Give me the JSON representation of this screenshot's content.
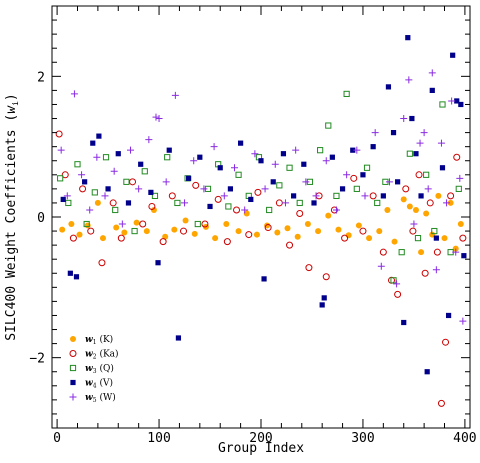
{
  "chart_data": {
    "type": "scatter",
    "xlabel": "Group Index",
    "ylabel": "SILC400 Weight Coefficients (",
    "ylabel_sym": "w",
    "ylabel_sub": "i",
    "ylabel_close": ")",
    "xlim": [
      -5,
      405
    ],
    "ylim": [
      -3.0,
      3.0
    ],
    "x_ticks": [
      "0",
      "100",
      "200",
      "300",
      "400"
    ],
    "y_ticks": [
      "−2",
      "0",
      "2"
    ],
    "legend_position": "bottom-left",
    "series": [
      {
        "key": "w1",
        "name": "w",
        "sub": "1",
        "suffix": " (K)",
        "color": "#ffa500",
        "marker": "filled-circle",
        "points": [
          [
            5,
            -0.18
          ],
          [
            14,
            -0.1
          ],
          [
            22,
            -0.25
          ],
          [
            30,
            -0.12
          ],
          [
            40,
            0.2
          ],
          [
            45,
            -0.3
          ],
          [
            58,
            -0.15
          ],
          [
            66,
            -0.22
          ],
          [
            78,
            -0.08
          ],
          [
            88,
            -0.2
          ],
          [
            95,
            0.1
          ],
          [
            106,
            -0.28
          ],
          [
            115,
            -0.18
          ],
          [
            126,
            -0.05
          ],
          [
            135,
            -0.24
          ],
          [
            146,
            -0.14
          ],
          [
            155,
            -0.3
          ],
          [
            166,
            -0.1
          ],
          [
            178,
            -0.2
          ],
          [
            186,
            0.05
          ],
          [
            196,
            -0.25
          ],
          [
            206,
            -0.12
          ],
          [
            216,
            -0.22
          ],
          [
            226,
            -0.16
          ],
          [
            236,
            -0.28
          ],
          [
            246,
            -0.1
          ],
          [
            256,
            -0.2
          ],
          [
            266,
            0.02
          ],
          [
            276,
            -0.18
          ],
          [
            286,
            -0.26
          ],
          [
            296,
            -0.12
          ],
          [
            306,
            -0.3
          ],
          [
            316,
            -0.2
          ],
          [
            324,
            0.1
          ],
          [
            331,
            -0.35
          ],
          [
            340,
            0.25
          ],
          [
            346,
            0.15
          ],
          [
            352,
            0.1
          ],
          [
            357,
            -0.5
          ],
          [
            362,
            0.05
          ],
          [
            368,
            -0.25
          ],
          [
            374,
            0.3
          ],
          [
            380,
            -0.3
          ],
          [
            386,
            0.2
          ],
          [
            391,
            -0.45
          ],
          [
            396,
            -0.1
          ]
        ]
      },
      {
        "key": "w2",
        "name": "w",
        "sub": "2",
        "suffix": " (Ka)",
        "color": "#cc0000",
        "marker": "open-circle",
        "points": [
          [
            2,
            1.18
          ],
          [
            8,
            0.6
          ],
          [
            16,
            -0.3
          ],
          [
            25,
            0.4
          ],
          [
            33,
            -0.2
          ],
          [
            44,
            -0.65
          ],
          [
            55,
            0.2
          ],
          [
            63,
            -0.3
          ],
          [
            74,
            0.5
          ],
          [
            84,
            -0.1
          ],
          [
            93,
            0.15
          ],
          [
            104,
            -0.35
          ],
          [
            113,
            0.3
          ],
          [
            124,
            -0.2
          ],
          [
            136,
            0.45
          ],
          [
            145,
            -0.1
          ],
          [
            158,
            0.25
          ],
          [
            167,
            -0.35
          ],
          [
            176,
            0.1
          ],
          [
            188,
            -0.25
          ],
          [
            197,
            0.35
          ],
          [
            207,
            -0.15
          ],
          [
            218,
            0.2
          ],
          [
            228,
            -0.4
          ],
          [
            238,
            0.05
          ],
          [
            247,
            -0.72
          ],
          [
            257,
            0.3
          ],
          [
            264,
            -0.85
          ],
          [
            272,
            0.1
          ],
          [
            282,
            -0.3
          ],
          [
            291,
            0.55
          ],
          [
            300,
            -0.2
          ],
          [
            310,
            0.3
          ],
          [
            320,
            -0.5
          ],
          [
            328,
            -0.9
          ],
          [
            334,
            -1.1
          ],
          [
            342,
            0.4
          ],
          [
            349,
            -0.2
          ],
          [
            355,
            0.6
          ],
          [
            361,
            -0.8
          ],
          [
            366,
            0.2
          ],
          [
            373,
            -0.5
          ],
          [
            377,
            -2.65
          ],
          [
            381,
            -1.78
          ],
          [
            386,
            0.3
          ],
          [
            392,
            0.85
          ],
          [
            398,
            -0.3
          ]
        ]
      },
      {
        "key": "w3",
        "name": "w",
        "sub": "3",
        "suffix": " (Q)",
        "color": "#228b22",
        "marker": "open-square",
        "points": [
          [
            3,
            0.55
          ],
          [
            11,
            0.2
          ],
          [
            20,
            0.75
          ],
          [
            29,
            -0.1
          ],
          [
            37,
            0.35
          ],
          [
            48,
            0.85
          ],
          [
            57,
            0.1
          ],
          [
            68,
            0.5
          ],
          [
            76,
            -0.2
          ],
          [
            86,
            0.65
          ],
          [
            96,
            0.3
          ],
          [
            108,
            0.85
          ],
          [
            118,
            0.2
          ],
          [
            128,
            0.55
          ],
          [
            138,
            -0.1
          ],
          [
            148,
            0.4
          ],
          [
            158,
            0.75
          ],
          [
            168,
            0.15
          ],
          [
            178,
            0.6
          ],
          [
            188,
            0.3
          ],
          [
            198,
            0.85
          ],
          [
            208,
            0.1
          ],
          [
            218,
            0.45
          ],
          [
            228,
            0.7
          ],
          [
            238,
            0.2
          ],
          [
            248,
            0.5
          ],
          [
            258,
            0.95
          ],
          [
            266,
            1.3
          ],
          [
            274,
            0.3
          ],
          [
            284,
            1.75
          ],
          [
            294,
            0.4
          ],
          [
            304,
            0.7
          ],
          [
            314,
            0.2
          ],
          [
            322,
            0.5
          ],
          [
            330,
            -0.9
          ],
          [
            338,
            -0.5
          ],
          [
            346,
            0.9
          ],
          [
            354,
            -0.3
          ],
          [
            362,
            0.6
          ],
          [
            370,
            -0.2
          ],
          [
            378,
            1.6
          ],
          [
            386,
            -0.5
          ],
          [
            394,
            0.4
          ]
        ]
      },
      {
        "key": "w4",
        "name": "w",
        "sub": "4",
        "suffix": " (V)",
        "color": "#00008b",
        "marker": "filled-square",
        "points": [
          [
            6,
            0.25
          ],
          [
            13,
            -0.8
          ],
          [
            19,
            -0.85
          ],
          [
            27,
            0.5
          ],
          [
            35,
            1.05
          ],
          [
            41,
            1.15
          ],
          [
            50,
            0.4
          ],
          [
            60,
            0.9
          ],
          [
            70,
            0.2
          ],
          [
            82,
            0.75
          ],
          [
            92,
            0.35
          ],
          [
            99,
            -0.65
          ],
          [
            110,
            0.95
          ],
          [
            119,
            -1.72
          ],
          [
            129,
            0.55
          ],
          [
            140,
            0.85
          ],
          [
            150,
            0.15
          ],
          [
            160,
            0.7
          ],
          [
            170,
            0.4
          ],
          [
            180,
            1.05
          ],
          [
            190,
            0.25
          ],
          [
            200,
            0.8
          ],
          [
            203,
            -0.88
          ],
          [
            212,
            0.5
          ],
          [
            222,
            0.9
          ],
          [
            232,
            0.3
          ],
          [
            242,
            0.75
          ],
          [
            252,
            0.2
          ],
          [
            260,
            -1.25
          ],
          [
            262,
            -1.15
          ],
          [
            270,
            0.85
          ],
          [
            280,
            0.4
          ],
          [
            290,
            0.95
          ],
          [
            300,
            0.6
          ],
          [
            310,
            1.0
          ],
          [
            320,
            0.3
          ],
          [
            325,
            1.85
          ],
          [
            330,
            1.2
          ],
          [
            334,
            0.5
          ],
          [
            340,
            -1.5
          ],
          [
            344,
            2.55
          ],
          [
            348,
            1.4
          ],
          [
            352,
            0.9
          ],
          [
            357,
            0.3
          ],
          [
            363,
            -2.2
          ],
          [
            368,
            1.8
          ],
          [
            372,
            -0.3
          ],
          [
            378,
            0.7
          ],
          [
            384,
            -1.4
          ],
          [
            388,
            2.3
          ],
          [
            392,
            1.65
          ],
          [
            396,
            1.6
          ],
          [
            399,
            -0.55
          ]
        ]
      },
      {
        "key": "w5",
        "name": "w",
        "sub": "5",
        "suffix": " (W)",
        "color": "#8a2be2",
        "marker": "plus",
        "points": [
          [
            4,
            0.95
          ],
          [
            10,
            0.3
          ],
          [
            17,
            1.75
          ],
          [
            24,
            0.6
          ],
          [
            32,
            0.1
          ],
          [
            39,
            0.85
          ],
          [
            47,
            0.3
          ],
          [
            56,
            0.65
          ],
          [
            64,
            -0.1
          ],
          [
            72,
            0.95
          ],
          [
            80,
            0.4
          ],
          [
            90,
            1.1
          ],
          [
            97,
            1.42
          ],
          [
            100,
            1.4
          ],
          [
            107,
            0.5
          ],
          [
            116,
            1.73
          ],
          [
            125,
            0.2
          ],
          [
            134,
            0.8
          ],
          [
            144,
            0.4
          ],
          [
            154,
            1.0
          ],
          [
            164,
            0.3
          ],
          [
            174,
            0.7
          ],
          [
            184,
            0.1
          ],
          [
            194,
            0.9
          ],
          [
            204,
            0.4
          ],
          [
            214,
            0.75
          ],
          [
            224,
            0.2
          ],
          [
            234,
            0.95
          ],
          [
            244,
            0.5
          ],
          [
            254,
            0.3
          ],
          [
            264,
            0.8
          ],
          [
            274,
            0.1
          ],
          [
            284,
            0.6
          ],
          [
            294,
            0.95
          ],
          [
            302,
            0.3
          ],
          [
            312,
            1.2
          ],
          [
            318,
            -0.7
          ],
          [
            326,
            0.5
          ],
          [
            333,
            -0.95
          ],
          [
            340,
            1.4
          ],
          [
            345,
            1.95
          ],
          [
            350,
            -0.1
          ],
          [
            356,
            1.05
          ],
          [
            360,
            1.2
          ],
          [
            364,
            0.4
          ],
          [
            368,
            2.05
          ],
          [
            372,
            -0.75
          ],
          [
            377,
            1.05
          ],
          [
            382,
            0.2
          ],
          [
            387,
            1.65
          ],
          [
            391,
            -0.5
          ],
          [
            395,
            0.55
          ],
          [
            398,
            -1.48
          ]
        ]
      }
    ]
  }
}
